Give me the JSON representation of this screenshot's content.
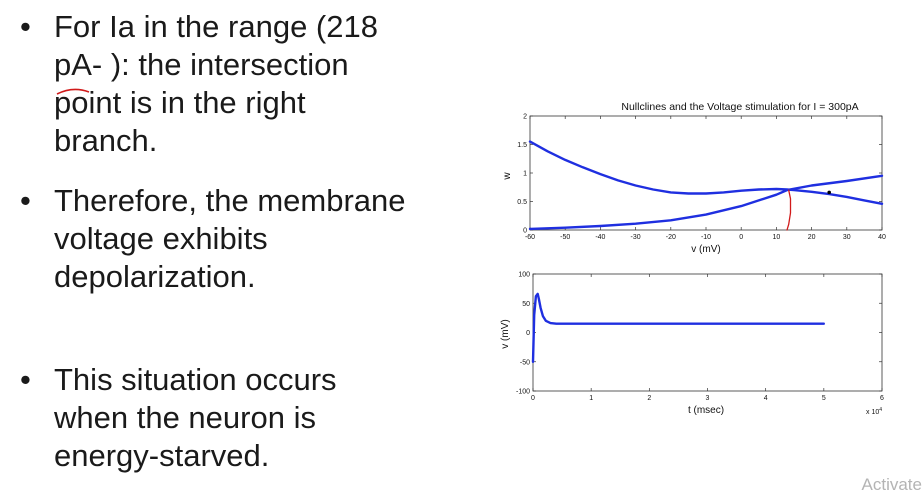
{
  "slide": {
    "bullets": [
      {
        "lines": [
          "For Ia in the range (218",
          "pA- ): the intersection",
          "point is in the right",
          "branch."
        ]
      },
      {
        "lines": [
          "Therefore, the membrane",
          "voltage exhibits",
          "depolarization."
        ]
      },
      {
        "lines": [
          "This situation occurs",
          "when the neuron is",
          "energy-starved."
        ]
      }
    ],
    "bullet_glyph": "•",
    "watermark": "Activate"
  },
  "chart_data": [
    {
      "type": "line",
      "title": "Nullclines and the Voltage stimulation for I = 300pA",
      "xlabel": "v (mV)",
      "ylabel": "w",
      "xlim": [
        -60,
        40
      ],
      "ylim": [
        0,
        2
      ],
      "x_ticks": [
        "-60",
        "-50",
        "-40",
        "-30",
        "-20",
        "-10",
        "0",
        "10",
        "20",
        "30",
        "40"
      ],
      "y_ticks": [
        "0",
        "0.5",
        "1",
        "1.5",
        "2"
      ],
      "series": [
        {
          "x": [
            -60,
            -55,
            -50,
            -45,
            -40,
            -35,
            -30,
            -25,
            -20,
            -15,
            -10,
            -5,
            0,
            5,
            10,
            13,
            15,
            20,
            25,
            30,
            35,
            40
          ],
          "y": [
            1.55,
            1.38,
            1.23,
            1.1,
            0.98,
            0.87,
            0.78,
            0.71,
            0.66,
            0.64,
            0.64,
            0.66,
            0.69,
            0.71,
            0.72,
            0.71,
            0.7,
            0.67,
            0.63,
            0.58,
            0.52,
            0.46
          ],
          "color": "#1f2fe0"
        },
        {
          "x": [
            -60,
            -50,
            -40,
            -30,
            -20,
            -10,
            0,
            10,
            13,
            20,
            30,
            40
          ],
          "y": [
            0.02,
            0.04,
            0.07,
            0.11,
            0.17,
            0.27,
            0.42,
            0.62,
            0.7,
            0.78,
            0.86,
            0.95
          ],
          "color": "#1f2fe0"
        },
        {
          "x": [
            13.5,
            14,
            14,
            13.5,
            13
          ],
          "y": [
            0.7,
            0.55,
            0.3,
            0.1,
            0
          ],
          "color": "#d11a1a"
        }
      ],
      "point": {
        "x": 25,
        "y": 0.66
      }
    },
    {
      "type": "line",
      "xlabel": "t (msec)",
      "ylabel": "v (mV)",
      "xlim": [
        0,
        6
      ],
      "ylim": [
        -100,
        100
      ],
      "x_ticks": [
        "0",
        "1",
        "2",
        "3",
        "4",
        "5",
        "6"
      ],
      "y_ticks": [
        "-100",
        "-50",
        "0",
        "50",
        "100"
      ],
      "x_multiplier": "x 10",
      "x_multiplier_exp": "4",
      "series": [
        {
          "x": [
            0,
            0.02,
            0.05,
            0.08,
            0.1,
            0.13,
            0.17,
            0.22,
            0.3,
            0.4,
            0.6,
            1,
            2,
            3,
            4,
            5
          ],
          "y": [
            -50,
            30,
            62,
            66,
            58,
            42,
            28,
            20,
            16,
            15,
            15,
            15,
            15,
            15,
            15,
            15
          ],
          "color": "#1f2fe0"
        }
      ]
    }
  ]
}
